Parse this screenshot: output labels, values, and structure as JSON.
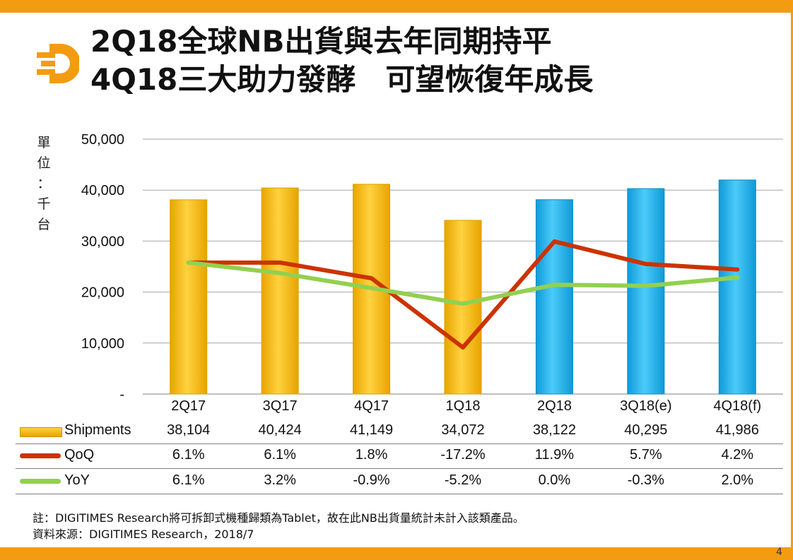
{
  "slide": {
    "title_line1": "2Q18全球NB出貨與去年同期持平",
    "title_line2": "4Q18三大助力發酵　可望恢復年成長",
    "unit_chars": [
      "單",
      "位",
      "：",
      "千",
      "台"
    ],
    "footnote_line1": "註：DIGITIMES Research將可拆卸式機種歸類為Tablet，故在此NB出貨量統計未計入該類產品。",
    "footnote_line2": "資料來源：DIGITIMES Research，2018/7",
    "page_number": "4",
    "accent_color": "#F39C12"
  },
  "chart_data": {
    "type": "bar+line",
    "title": "2Q18全球NB出貨與去年同期持平",
    "ylabel": "單位：千台",
    "ylim": [
      0,
      50000
    ],
    "y_ticks": [
      0,
      10000,
      20000,
      30000,
      40000,
      50000
    ],
    "y_tick_labels": [
      "-",
      "10,000",
      "20,000",
      "30,000",
      "40,000",
      "50,000"
    ],
    "gridlines": true,
    "categories": [
      "2Q17",
      "3Q17",
      "4Q17",
      "1Q18",
      "2Q18",
      "3Q18(e)",
      "4Q18(f)"
    ],
    "series": [
      {
        "name": "Shipments",
        "type": "bar",
        "values": [
          38104,
          40424,
          41149,
          34072,
          38122,
          40295,
          41986
        ],
        "display": [
          "38,104",
          "40,424",
          "41,149",
          "34,072",
          "38,122",
          "40,295",
          "41,986"
        ],
        "colors": [
          "#FFC000",
          "#FFC000",
          "#FFC000",
          "#FFC000",
          "#1EB4F0",
          "#1EB4F0",
          "#1EB4F0"
        ]
      },
      {
        "name": "QoQ",
        "type": "line",
        "values": [
          6.1,
          6.1,
          1.8,
          -17.2,
          11.9,
          5.7,
          4.2
        ],
        "display": [
          "6.1%",
          "6.1%",
          "1.8%",
          "-17.2%",
          "11.9%",
          "5.7%",
          "4.2%"
        ],
        "color": "#CC3300"
      },
      {
        "name": "YoY",
        "type": "line",
        "values": [
          6.1,
          3.2,
          -0.9,
          -5.2,
          0.0,
          -0.3,
          2.0
        ],
        "display": [
          "6.1%",
          "3.2%",
          "-0.9%",
          "-5.2%",
          "0.0%",
          "-0.3%",
          "2.0%"
        ],
        "color": "#92D050"
      }
    ]
  }
}
